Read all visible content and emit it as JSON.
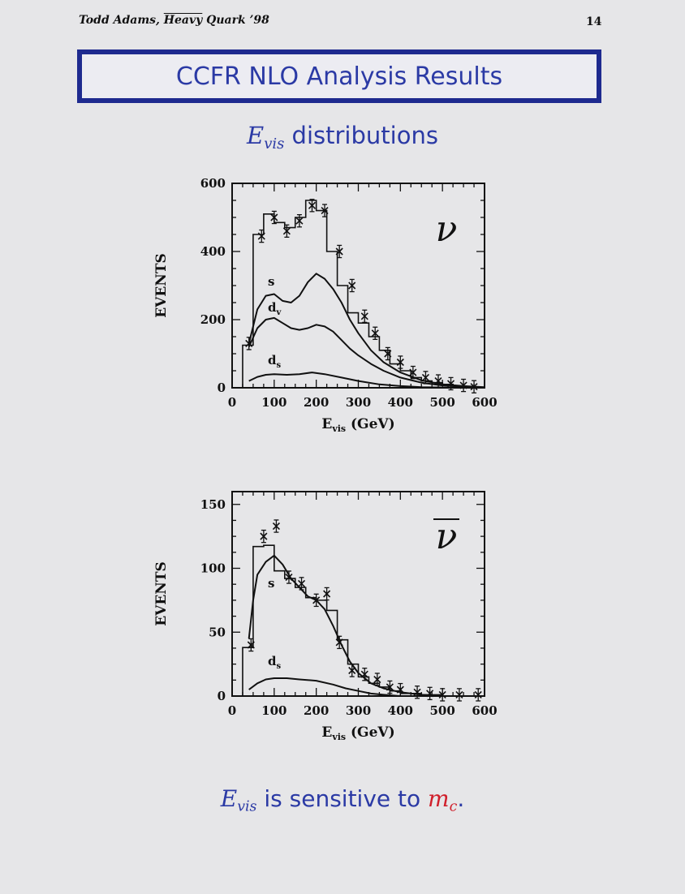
{
  "header": {
    "author_prefix": "Todd Adams, ",
    "conference_overlined": "Heavy",
    "conference_rest": " Quark ’98",
    "page_number": "14"
  },
  "title": "CCFR NLO Analysis Results",
  "subtitle": {
    "symbol": "E",
    "symbol_sub": "vis",
    "text": " distributions"
  },
  "footer": {
    "symbol": "E",
    "symbol_sub": "vis",
    "text": " is sensitive to ",
    "mass_symbol": "m",
    "mass_sub": "c",
    "end": "."
  },
  "colors": {
    "title_blue": "#2b3aa5",
    "border_blue": "#1e2a8f",
    "highlight_red": "#d01f2b",
    "ink": "#111111"
  },
  "chart_data": [
    {
      "type": "line",
      "panel_symbol": "ν",
      "xlabel": "E",
      "xlabel_sub": "vis",
      "xlabel_unit": " (GeV)",
      "ylabel": "EVENTS",
      "xlim": [
        0,
        600
      ],
      "ylim": [
        0,
        600
      ],
      "x_ticks": [
        0,
        100,
        200,
        300,
        400,
        500,
        600
      ],
      "y_ticks": [
        0,
        200,
        400,
        600
      ],
      "histogram": {
        "edges": [
          25,
          50,
          75,
          100,
          125,
          150,
          175,
          200,
          225,
          250,
          275,
          300,
          325,
          350,
          375,
          400,
          425,
          450,
          475,
          500,
          525,
          550,
          575,
          600
        ],
        "values": [
          125,
          450,
          510,
          485,
          470,
          500,
          550,
          520,
          400,
          300,
          220,
          190,
          150,
          110,
          70,
          50,
          30,
          20,
          15,
          10,
          5,
          3,
          1
        ]
      },
      "points": {
        "x": [
          40,
          70,
          100,
          130,
          160,
          190,
          220,
          255,
          285,
          315,
          340,
          370,
          400,
          430,
          460,
          490,
          520,
          550,
          575
        ],
        "y": [
          130,
          445,
          500,
          460,
          490,
          535,
          520,
          400,
          300,
          210,
          160,
          100,
          75,
          45,
          30,
          20,
          12,
          7,
          3
        ]
      },
      "series": [
        {
          "name": "s",
          "x": [
            40,
            60,
            80,
            100,
            120,
            140,
            160,
            180,
            200,
            220,
            240,
            260,
            280,
            300,
            330,
            360,
            400,
            450,
            500,
            550,
            600
          ],
          "y": [
            130,
            230,
            270,
            275,
            255,
            250,
            270,
            310,
            335,
            320,
            290,
            250,
            200,
            160,
            110,
            75,
            45,
            22,
            10,
            5,
            2
          ]
        },
        {
          "name": "d_v",
          "x": [
            40,
            60,
            80,
            100,
            120,
            140,
            160,
            180,
            200,
            220,
            240,
            260,
            280,
            300,
            330,
            360,
            400,
            450,
            500,
            550,
            600
          ],
          "y": [
            120,
            175,
            200,
            205,
            190,
            175,
            170,
            175,
            185,
            180,
            165,
            140,
            115,
            95,
            70,
            50,
            30,
            15,
            7,
            3,
            1
          ]
        },
        {
          "name": "d_s",
          "x": [
            40,
            60,
            80,
            100,
            130,
            160,
            190,
            220,
            260,
            300,
            350,
            400,
            450,
            500,
            550,
            600
          ],
          "y": [
            20,
            32,
            38,
            40,
            38,
            40,
            45,
            40,
            30,
            20,
            10,
            5,
            2,
            1,
            0,
            0
          ]
        }
      ],
      "labels": [
        {
          "text": "s",
          "sub": ""
        },
        {
          "text": "d",
          "sub": "v"
        },
        {
          "text": "d",
          "sub": "s"
        }
      ]
    },
    {
      "type": "line",
      "panel_symbol": "ν",
      "panel_symbol_overline": true,
      "xlabel": "E",
      "xlabel_sub": "vis",
      "xlabel_unit": " (GeV)",
      "ylabel": "EVENTS",
      "xlim": [
        0,
        600
      ],
      "ylim": [
        0,
        160
      ],
      "x_ticks": [
        0,
        100,
        200,
        300,
        400,
        500,
        600
      ],
      "y_ticks": [
        0,
        50,
        100,
        150
      ],
      "histogram": {
        "edges": [
          25,
          50,
          75,
          100,
          125,
          150,
          175,
          200,
          225,
          250,
          275,
          300,
          325,
          350,
          375,
          400,
          425,
          450,
          475,
          500,
          525,
          550,
          575,
          600
        ],
        "values": [
          38,
          117,
          118,
          98,
          92,
          85,
          77,
          75,
          67,
          44,
          25,
          15,
          10,
          7,
          4,
          2,
          2,
          1,
          1,
          0,
          0,
          0,
          0
        ]
      },
      "points": {
        "x": [
          45,
          75,
          105,
          135,
          165,
          200,
          225,
          255,
          285,
          315,
          345,
          375,
          400,
          440,
          470,
          500,
          540,
          585
        ],
        "y": [
          40,
          125,
          133,
          93,
          88,
          75,
          80,
          42,
          20,
          17,
          13,
          7,
          5,
          3,
          2,
          1,
          1,
          1
        ]
      },
      "series": [
        {
          "name": "s",
          "x": [
            40,
            50,
            60,
            80,
            100,
            120,
            140,
            160,
            180,
            200,
            220,
            240,
            260,
            280,
            300,
            330,
            360,
            400,
            450,
            500,
            600
          ],
          "y": [
            45,
            75,
            95,
            105,
            110,
            103,
            92,
            85,
            78,
            75,
            68,
            55,
            40,
            27,
            18,
            10,
            6,
            3,
            1,
            0,
            0
          ]
        },
        {
          "name": "d_s",
          "x": [
            40,
            60,
            80,
            100,
            130,
            160,
            200,
            240,
            270,
            300,
            330,
            360,
            400,
            450,
            500,
            600
          ],
          "y": [
            5,
            10,
            13,
            14,
            14,
            13,
            12,
            9,
            6,
            4,
            2,
            1,
            0,
            0,
            0,
            0
          ]
        }
      ],
      "labels": [
        {
          "text": "s",
          "sub": ""
        },
        {
          "text": "d",
          "sub": "s"
        }
      ]
    }
  ]
}
